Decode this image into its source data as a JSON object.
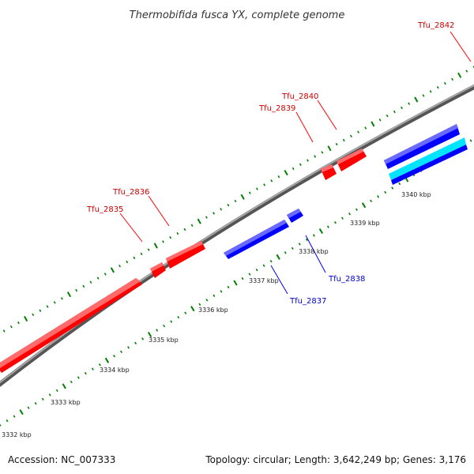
{
  "title": "Thermobifida fusca YX, complete genome",
  "footer": {
    "accession": "Accession: NC_007333",
    "summary": "Topology: circular; Length: 3,642,249 bp; Genes: 3,176"
  },
  "colors": {
    "forward_gene": "#ff0000",
    "reverse_gene": "#0000ff",
    "cyan_feature": "#00ffff",
    "backbone": "#888888",
    "tick": "#008000",
    "forward_label": "#cc0000",
    "reverse_label": "#0000cc"
  },
  "scale": {
    "tick_labels": [
      "3332 kbp",
      "3333 kbp",
      "3334 kbp",
      "3335 kbp",
      "3336 kbp",
      "3337 kbp",
      "3338 kbp",
      "3339 kbp",
      "3340 kbp"
    ]
  },
  "genes": {
    "forward": [
      "Tfu_2835",
      "Tfu_2836",
      "Tfu_2839",
      "Tfu_2840",
      "Tfu_2842"
    ],
    "reverse": [
      "Tfu_2837",
      "Tfu_2838"
    ]
  }
}
